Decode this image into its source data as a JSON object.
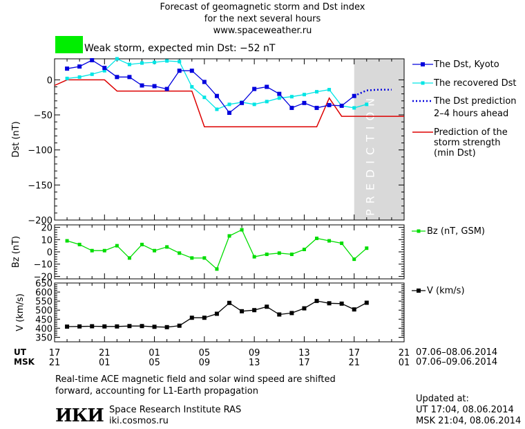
{
  "header": {
    "line1": "Forecast of geomagnetic storm and Dst index",
    "line2": "for the next several hours",
    "line3": "www.spaceweather.ru"
  },
  "storm": {
    "color": "#00ee00",
    "label": "Weak storm, expected min Dst: −52 nT"
  },
  "legend": {
    "dst_kyoto": "The Dst, Kyoto",
    "dst_recovered": "The recovered Dst",
    "dst_prediction_1": "The Dst prediction",
    "dst_prediction_2": "2–4 hours ahead",
    "storm_strength_1": "Prediction of the",
    "storm_strength_2": "storm strength",
    "storm_strength_3": "(min Dst)",
    "bz": "Bz (nT, GSM)",
    "v": "V (km/s)"
  },
  "prediction_label": "PREDICTION",
  "time_axis": {
    "ut_label": "UT",
    "msk_label": "MSK",
    "ut_ticks": [
      "17",
      "21",
      "01",
      "05",
      "09",
      "13",
      "17",
      "21"
    ],
    "msk_ticks": [
      "21",
      "01",
      "05",
      "09",
      "13",
      "17",
      "21",
      "01"
    ],
    "ut_range": "07.06–08.06.2014",
    "msk_range": "07.06–09.06.2014"
  },
  "footer": {
    "note_line1": "Real-time ACE magnetic field and solar wind speed are shifted",
    "note_line2": "forward, accounting for L1-Earth propagation",
    "institute": "Space Research Institute RAS",
    "site": "iki.cosmos.ru",
    "logo_text": "ИКИ",
    "updated_label": "Updated at:",
    "updated_ut": "UT   17:04, 08.06.2014",
    "updated_msk": "MSK 21:04, 08.06.2014"
  },
  "colors": {
    "kyoto": "#0000dd",
    "recovered": "#00e5e5",
    "prediction": "#0000dd",
    "storm_line": "#dd0000",
    "bz": "#00dd00",
    "v": "#000000",
    "shade": "#d9d9d9"
  },
  "chart_data": [
    {
      "type": "line",
      "name": "Dst panel",
      "xlabel": "",
      "ylabel": "Dst (nT)",
      "xlim": [
        0,
        28
      ],
      "ylim": [
        -200,
        30
      ],
      "yticks": [
        0,
        -50,
        -100,
        -150,
        -200
      ],
      "x_unit": "hours since 07.06.2014 17:00 UT",
      "prediction_start": 24,
      "series": [
        {
          "name": "The Dst, Kyoto",
          "x": [
            1,
            2,
            3,
            4,
            5,
            6,
            7,
            8,
            9,
            10,
            11,
            12,
            13,
            14,
            15,
            16,
            17,
            18,
            19,
            20,
            21,
            22,
            23,
            24
          ],
          "y": [
            16,
            19,
            28,
            17,
            4,
            4,
            -8,
            -9,
            -13,
            13,
            13,
            -3,
            -23,
            -47,
            -33,
            -13,
            -10,
            -20,
            -40,
            -33,
            -40,
            -36,
            -37,
            -23
          ]
        },
        {
          "name": "The recovered Dst",
          "x": [
            1,
            2,
            3,
            4,
            5,
            6,
            7,
            8,
            9,
            10,
            11,
            12,
            13,
            14,
            15,
            16,
            17,
            18,
            19,
            20,
            21,
            22,
            23,
            24,
            25
          ],
          "y": [
            2,
            4,
            8,
            13,
            30,
            22,
            24,
            25,
            27,
            26,
            -10,
            -25,
            -42,
            -35,
            -32,
            -35,
            -31,
            -26,
            -24,
            -21,
            -17,
            -14,
            -37,
            -40,
            -35
          ]
        },
        {
          "name": "The Dst prediction",
          "x": [
            24,
            25,
            26,
            27
          ],
          "y": [
            -23,
            -15,
            -14,
            -14
          ]
        },
        {
          "name": "Prediction of the storm strength (min Dst)",
          "x": [
            0,
            1,
            2,
            3,
            4,
            5,
            6,
            7,
            8,
            9,
            10,
            11,
            12,
            13,
            14,
            15,
            16,
            17,
            18,
            19,
            20,
            21,
            22,
            23,
            24,
            25,
            26,
            27,
            28
          ],
          "y": [
            -8,
            0,
            0,
            0,
            0,
            -16,
            -16,
            -16,
            -16,
            -16,
            -16,
            -16,
            -67,
            -67,
            -67,
            -67,
            -67,
            -67,
            -67,
            -67,
            -67,
            -67,
            -26,
            -52,
            -52,
            -52,
            -52,
            -52,
            -52
          ]
        }
      ]
    },
    {
      "type": "line",
      "name": "Bz panel",
      "ylabel": "Bz (nT)",
      "xlim": [
        0,
        28
      ],
      "ylim": [
        -22,
        22
      ],
      "yticks": [
        20,
        10,
        0,
        -10,
        -20
      ],
      "series": [
        {
          "name": "Bz (nT, GSM)",
          "x": [
            1,
            2,
            3,
            4,
            5,
            6,
            7,
            8,
            9,
            10,
            11,
            12,
            13,
            14,
            15,
            16,
            17,
            18,
            19,
            20,
            21,
            22,
            23,
            24,
            25
          ],
          "y": [
            9,
            6,
            1,
            1,
            5,
            -5,
            6,
            1,
            4,
            -1,
            -5,
            -5,
            -14,
            13,
            18,
            -4,
            -2,
            -1,
            -2,
            2,
            11,
            9,
            7,
            -6,
            3
          ]
        }
      ]
    },
    {
      "type": "line",
      "name": "V panel",
      "ylabel": "V (km/s)",
      "xlim": [
        0,
        28
      ],
      "ylim": [
        325,
        650
      ],
      "yticks": [
        650,
        600,
        550,
        500,
        450,
        400,
        350
      ],
      "series": [
        {
          "name": "V (km/s)",
          "x": [
            1,
            2,
            3,
            4,
            5,
            6,
            7,
            8,
            9,
            10,
            11,
            12,
            13,
            14,
            15,
            16,
            17,
            18,
            19,
            20,
            21,
            22,
            23,
            24,
            25
          ],
          "y": [
            409,
            410,
            411,
            410,
            410,
            412,
            412,
            408,
            406,
            414,
            458,
            458,
            480,
            540,
            494,
            500,
            519,
            476,
            484,
            510,
            551,
            538,
            536,
            504,
            541
          ]
        }
      ]
    }
  ]
}
